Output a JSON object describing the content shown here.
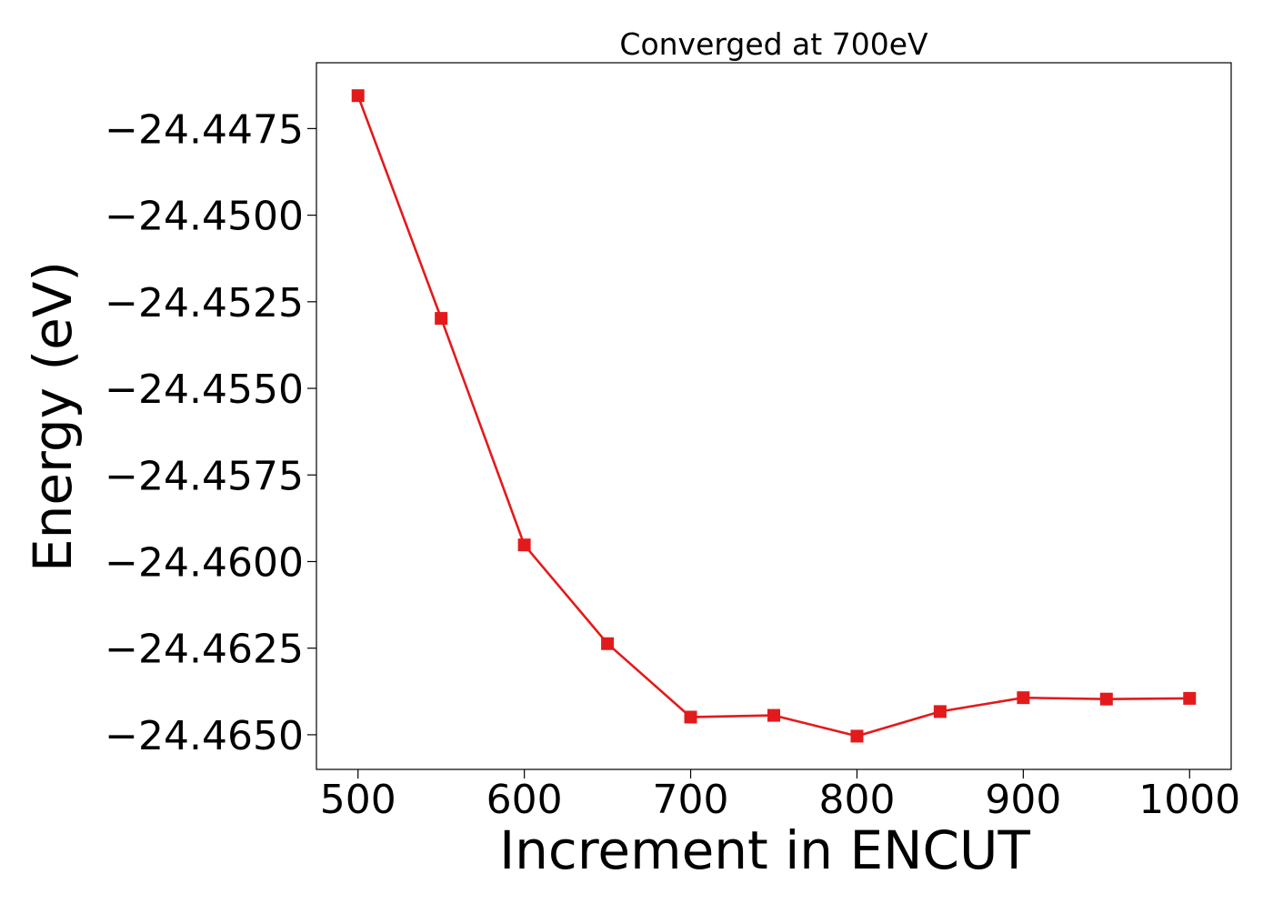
{
  "chart_data": {
    "type": "line",
    "title": "Converged at 700eV",
    "xlabel": "Increment in ENCUT",
    "ylabel": "Energy (eV)",
    "xlim": [
      475,
      1025
    ],
    "ylim": [
      -24.466,
      -24.4456
    ],
    "x_ticks": [
      500,
      600,
      700,
      800,
      900,
      1000
    ],
    "x_tick_labels": [
      "500",
      "600",
      "700",
      "800",
      "900",
      "1000"
    ],
    "y_ticks": [
      -24.4475,
      -24.45,
      -24.4525,
      -24.455,
      -24.4575,
      -24.46,
      -24.4625,
      -24.465
    ],
    "y_tick_labels": [
      "−24.4475",
      "−24.4500",
      "−24.4525",
      "−24.4550",
      "−24.4575",
      "−24.4600",
      "−24.4625",
      "−24.4650"
    ],
    "grid": false,
    "series": [
      {
        "color": "#e31a1c",
        "marker": "square",
        "x": [
          500,
          550,
          600,
          650,
          700,
          750,
          800,
          850,
          900,
          950,
          1000
        ],
        "y": [
          -24.44655,
          -24.45298,
          -24.45952,
          -24.46237,
          -24.46449,
          -24.46444,
          -24.46504,
          -24.46433,
          -24.46393,
          -24.46397,
          -24.46395
        ]
      }
    ]
  }
}
